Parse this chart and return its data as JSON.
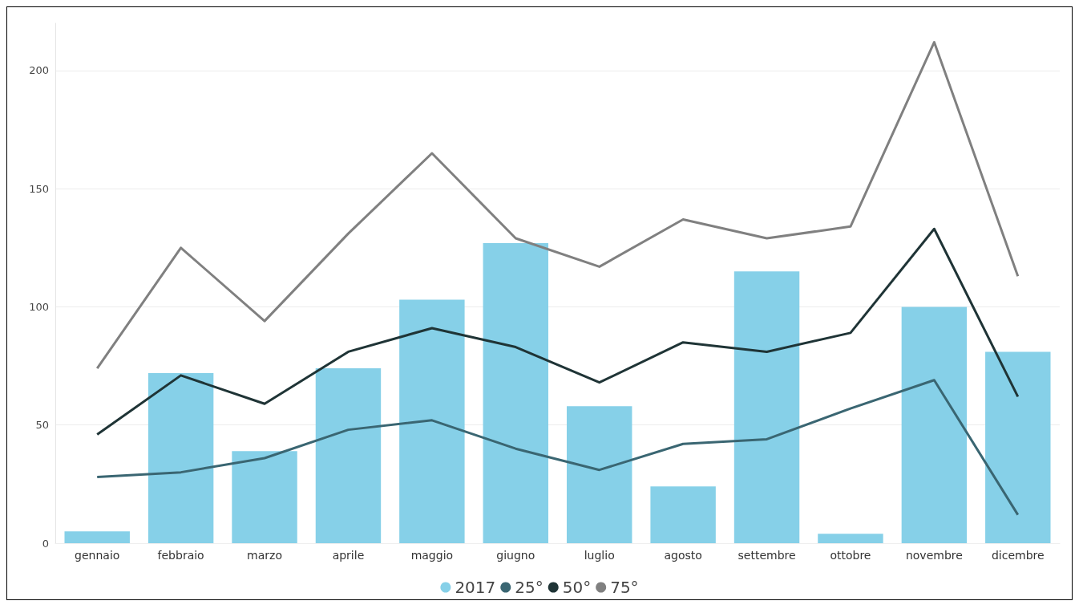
{
  "chart_data": {
    "type": "bar",
    "categories": [
      "gennaio",
      "febbraio",
      "marzo",
      "aprile",
      "maggio",
      "giugno",
      "luglio",
      "agosto",
      "settembre",
      "ottobre",
      "novembre",
      "dicembre"
    ],
    "series": [
      {
        "name": "2017",
        "color": "#86d0e8",
        "values": [
          5,
          72,
          39,
          74,
          103,
          127,
          58,
          24,
          115,
          4,
          100,
          81
        ]
      },
      {
        "name": "25°",
        "type": "line",
        "color": "#3a6672",
        "values": [
          28,
          30,
          36,
          48,
          52,
          40,
          31,
          42,
          44,
          57,
          69,
          12
        ]
      },
      {
        "name": "50°",
        "type": "line",
        "color": "#1f3436",
        "values": [
          46,
          71,
          59,
          81,
          91,
          83,
          68,
          85,
          81,
          89,
          133,
          62
        ]
      },
      {
        "name": "75°",
        "type": "line",
        "color": "#808080",
        "values": [
          74,
          125,
          94,
          131,
          165,
          129,
          117,
          137,
          129,
          134,
          212,
          113
        ]
      }
    ],
    "ylim": [
      0,
      220
    ],
    "yticks": [
      0,
      50,
      100,
      150,
      200
    ],
    "grid": "y",
    "legend": "bottom",
    "marker": "none",
    "line_style": "solid"
  }
}
